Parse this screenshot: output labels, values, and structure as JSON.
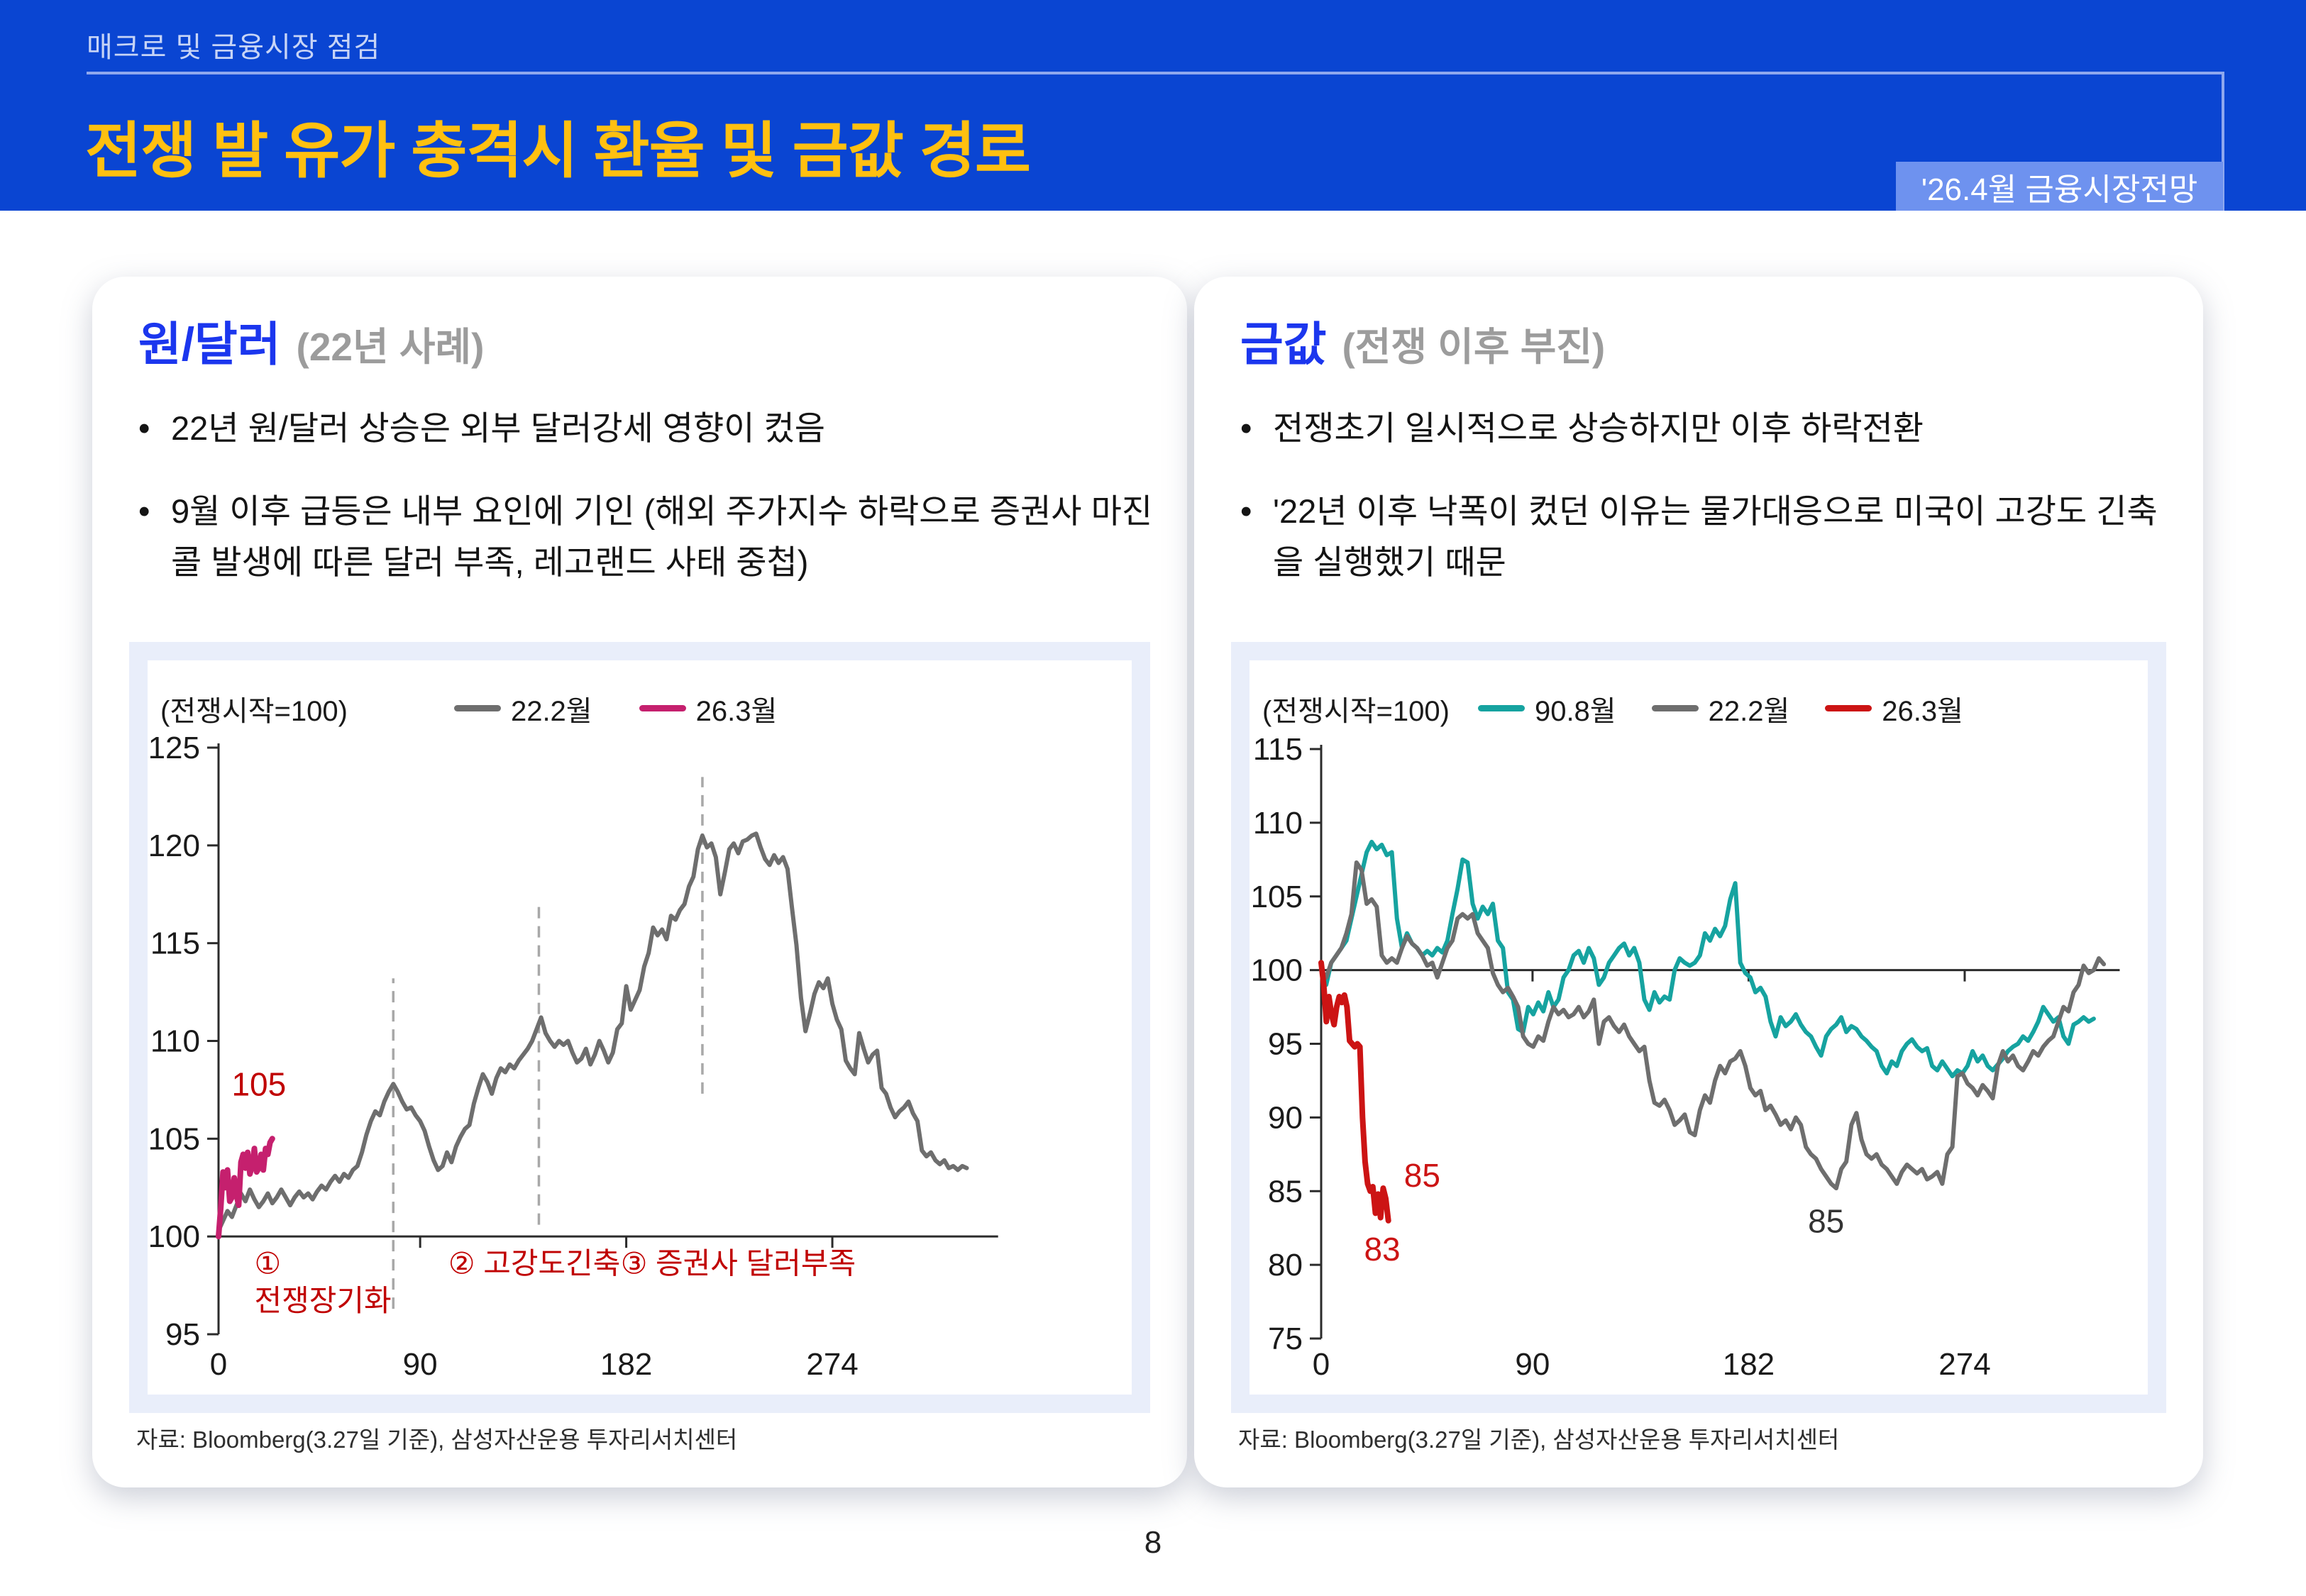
{
  "slide": {
    "eyebrow": "매크로 및 금융시장 점검",
    "title": "전쟁 발 유가 충격시 환율 및 금값 경로",
    "badge": "'26.4월 금융시장전망",
    "page_number": "8"
  },
  "colors": {
    "header_bg": "#0a45d2",
    "header_accent_line": "#8fa8ee",
    "title_yellow": "#ffc010",
    "badge_bg": "#6e92ef",
    "panel_title_blue": "#1b36ee",
    "subtitle_gray": "#9c9c9c",
    "chart_frame_bg": "#e9eefa",
    "annotation_red": "#c00000",
    "series_gray": "#6e6e6e",
    "series_pink": "#c5206e",
    "series_teal": "#16a3a0",
    "series_red": "#cc1414"
  },
  "panels": [
    {
      "title": "원/달러",
      "subtitle": "(22년 사례)",
      "bullets": [
        "22년 원/달러 상승은 외부 달러강세 영향이 컸음",
        "9월 이후 급등은 내부 요인에 기인 (해외 주가지수 하락으로 증권사 마진콜 발생에 따른 달러 부족, 레고랜드 사태 중첩)"
      ],
      "source": "자료: Bloomberg(3.27일 기준), 삼성자산운용 투자리서치센터"
    },
    {
      "title": "금값",
      "subtitle": "(전쟁 이후 부진)",
      "bullets": [
        "전쟁초기 일시적으로 상승하지만 이후 하락전환",
        "'22년 이후 낙폭이 컸던 이유는 물가대응으로 미국이 고강도 긴축을 실행했기 때문"
      ],
      "source": "자료: Bloomberg(3.27일 기준), 삼성자산운용 투자리서치센터"
    }
  ],
  "chart_data": [
    {
      "type": "line",
      "title": "원/달러 (22년 사례)",
      "unit_label": "(전쟁시작=100)",
      "xlabel": "",
      "ylabel": "",
      "xlim": [
        0,
        350
      ],
      "ylim": [
        95,
        125
      ],
      "xticks": [
        0,
        90,
        182,
        274
      ],
      "yticks": [
        95,
        100,
        105,
        110,
        115,
        120,
        125
      ],
      "baseline": 100,
      "baseline_to": 348,
      "grid": false,
      "legend_position": "top",
      "series": [
        {
          "name": "22.2월",
          "color": "#6e6e6e",
          "width": 6,
          "start": 0,
          "step": 2,
          "values": [
            100.3,
            100.8,
            101.3,
            101.0,
            101.6,
            102.2,
            101.8,
            102.4,
            101.9,
            101.5,
            101.8,
            102.2,
            101.7,
            102.0,
            102.4,
            102.0,
            101.6,
            102.0,
            102.3,
            102.0,
            102.2,
            101.9,
            102.3,
            102.6,
            102.4,
            102.8,
            103.1,
            102.8,
            103.2,
            103.0,
            103.4,
            103.6,
            104.3,
            105.2,
            105.9,
            106.4,
            106.2,
            106.9,
            107.4,
            107.8,
            107.4,
            106.9,
            106.5,
            106.6,
            106.2,
            105.9,
            105.4,
            104.6,
            103.9,
            103.4,
            103.6,
            104.3,
            103.8,
            104.6,
            105.1,
            105.5,
            105.7,
            106.8,
            107.6,
            108.3,
            107.9,
            107.3,
            108.1,
            108.6,
            108.4,
            108.8,
            108.6,
            109.0,
            109.3,
            109.6,
            110.0,
            110.6,
            111.2,
            110.4,
            110.0,
            109.7,
            110.0,
            109.8,
            110.0,
            109.4,
            108.9,
            109.1,
            109.6,
            108.8,
            109.3,
            110.0,
            109.5,
            108.9,
            109.4,
            110.6,
            110.9,
            112.8,
            111.6,
            112.1,
            112.6,
            113.8,
            114.5,
            115.8,
            115.4,
            115.7,
            115.2,
            116.4,
            116.2,
            116.7,
            117.0,
            117.9,
            118.4,
            119.8,
            120.5,
            119.9,
            120.1,
            119.4,
            117.5,
            118.6,
            119.8,
            120.1,
            119.6,
            120.2,
            120.3,
            120.5,
            120.6,
            119.9,
            119.3,
            119.0,
            119.5,
            119.1,
            119.4,
            118.8,
            116.8,
            114.9,
            112.2,
            110.5,
            111.4,
            112.4,
            113.0,
            112.7,
            113.2,
            111.9,
            111.1,
            110.6,
            109.0,
            108.6,
            108.3,
            110.4,
            109.6,
            108.9,
            109.3,
            109.5,
            107.6,
            107.3,
            106.6,
            106.1,
            106.4,
            106.6,
            106.9,
            106.3,
            105.9,
            104.4,
            104.1,
            104.3,
            103.9,
            103.7,
            103.9,
            103.5,
            103.6,
            103.4,
            103.6,
            103.5
          ]
        },
        {
          "name": "26.3월",
          "color": "#c5206e",
          "width": 8,
          "start": 0,
          "step": 1,
          "values": [
            100.0,
            101.5,
            103.3,
            102.5,
            103.4,
            101.8,
            102.0,
            103.0,
            102.1,
            101.6,
            103.8,
            104.2,
            103.5,
            104.3,
            103.2,
            103.6,
            104.5,
            103.3,
            103.5,
            104.2,
            103.4,
            104.5,
            104.2,
            104.8,
            105.0
          ]
        }
      ],
      "vlines": [
        {
          "x": 78,
          "y1": 96.3,
          "y2": 113.2
        },
        {
          "x": 143,
          "y1": 100.6,
          "y2": 117.2
        },
        {
          "x": 216,
          "y1": 107.3,
          "y2": 123.5
        }
      ],
      "annotations": [
        {
          "text": "105",
          "x": 18,
          "y": 107.2,
          "color": "#c00000",
          "size": 46,
          "anchor": "middle"
        },
        {
          "text": "①",
          "x": 16,
          "y": 98.1,
          "color": "#c00000",
          "size": 42,
          "anchor": "start"
        },
        {
          "text": "전쟁장기화",
          "x": 16,
          "y": 96.2,
          "color": "#c00000",
          "size": 42,
          "anchor": "start"
        },
        {
          "text": "② 고강도긴축",
          "x": 141,
          "y": 98.1,
          "color": "#c00000",
          "size": 42,
          "anchor": "middle"
        },
        {
          "text": "③ 증권사 달러부족",
          "x": 232,
          "y": 98.1,
          "color": "#c00000",
          "size": 42,
          "anchor": "middle"
        }
      ]
    },
    {
      "type": "line",
      "title": "금값 (전쟁 이후 부진)",
      "unit_label": "(전쟁시작=100)",
      "xlabel": "",
      "ylabel": "",
      "xlim": [
        0,
        345
      ],
      "ylim": [
        75,
        115
      ],
      "xticks": [
        0,
        90,
        182,
        274
      ],
      "yticks": [
        75,
        80,
        85,
        90,
        95,
        100,
        105,
        110,
        115
      ],
      "baseline": 100,
      "baseline_to": 340,
      "grid": false,
      "legend_position": "top",
      "series": [
        {
          "name": "90.8월",
          "color": "#16a3a0",
          "width": 6,
          "start": 0,
          "step": 2.15,
          "values": [
            100.0,
            99.0,
            100.5,
            101.0,
            101.5,
            102.0,
            103.5,
            105.0,
            106.5,
            108.0,
            108.7,
            108.2,
            108.5,
            107.8,
            108.0,
            103.5,
            101.5,
            102.5,
            101.8,
            101.5,
            101.0,
            101.3,
            101.0,
            101.5,
            101.2,
            102.0,
            103.8,
            105.5,
            107.5,
            107.3,
            104.5,
            103.5,
            104.3,
            103.8,
            104.5,
            102.0,
            101.5,
            98.5,
            98.0,
            96.0,
            95.8,
            97.5,
            97.0,
            97.8,
            97.2,
            98.5,
            97.5,
            98.0,
            99.5,
            100.0,
            101.0,
            101.3,
            100.5,
            101.5,
            100.8,
            99.0,
            99.5,
            100.5,
            101.0,
            101.5,
            101.8,
            101.0,
            101.5,
            100.5,
            98.0,
            97.3,
            98.5,
            97.8,
            98.2,
            98.0,
            100.0,
            100.8,
            100.5,
            100.3,
            100.5,
            101.0,
            102.5,
            102.0,
            102.8,
            102.3,
            103.0,
            104.8,
            105.9,
            100.5,
            99.8,
            99.5,
            98.5,
            98.8,
            98.2,
            96.5,
            95.5,
            96.8,
            96.2,
            96.5,
            97.0,
            96.3,
            95.8,
            95.5,
            94.8,
            94.2,
            95.5,
            96.0,
            96.3,
            96.8,
            95.8,
            96.2,
            96.0,
            95.5,
            95.2,
            94.8,
            94.5,
            93.5,
            93.0,
            93.8,
            93.5,
            94.5,
            95.0,
            95.3,
            94.8,
            94.5,
            94.7,
            93.5,
            93.2,
            93.8,
            93.3,
            92.8,
            93.2,
            93.0,
            93.5,
            94.5,
            93.8,
            94.2,
            93.5,
            93.2,
            93.6,
            94.0,
            94.5,
            94.8,
            95.0,
            95.5,
            95.2,
            95.8,
            96.5,
            97.5,
            97.0,
            96.5,
            96.8,
            95.5,
            95.0,
            96.3,
            96.5,
            96.8,
            96.5,
            96.7
          ]
        },
        {
          "name": "22.2월",
          "color": "#6e6e6e",
          "width": 6,
          "start": 0,
          "step": 2.15,
          "values": [
            100.0,
            99.5,
            100.5,
            101.0,
            101.5,
            102.5,
            103.8,
            107.3,
            106.8,
            104.5,
            104.8,
            104.3,
            101.0,
            100.5,
            100.8,
            100.5,
            101.5,
            102.3,
            101.8,
            101.5,
            101.0,
            100.3,
            100.5,
            99.5,
            100.5,
            101.5,
            102.0,
            103.5,
            103.8,
            103.5,
            103.8,
            102.5,
            102.0,
            101.5,
            99.8,
            99.0,
            98.5,
            98.8,
            98.2,
            97.5,
            95.5,
            95.0,
            94.8,
            95.5,
            95.2,
            96.5,
            97.5,
            97.0,
            97.3,
            96.8,
            97.0,
            97.5,
            96.8,
            97.2,
            98.0,
            95.0,
            96.5,
            96.8,
            96.2,
            95.8,
            96.3,
            95.5,
            95.0,
            94.5,
            94.8,
            92.5,
            91.0,
            90.8,
            91.2,
            90.5,
            89.5,
            89.8,
            90.2,
            89.0,
            88.8,
            90.5,
            91.5,
            91.0,
            92.5,
            93.5,
            93.0,
            93.8,
            94.0,
            94.5,
            93.5,
            92.0,
            91.5,
            91.8,
            90.5,
            90.8,
            90.2,
            89.5,
            89.8,
            89.2,
            90.0,
            89.5,
            88.0,
            87.5,
            87.2,
            86.5,
            86.0,
            85.5,
            85.2,
            86.5,
            87.0,
            89.5,
            90.3,
            88.5,
            87.5,
            87.2,
            87.5,
            86.8,
            86.5,
            86.0,
            85.5,
            86.3,
            86.8,
            86.5,
            86.2,
            86.5,
            85.8,
            86.0,
            86.3,
            85.5,
            87.5,
            88.0,
            92.8,
            93.0,
            92.3,
            92.0,
            91.5,
            92.2,
            91.8,
            91.3,
            93.5,
            94.5,
            93.8,
            94.2,
            93.5,
            93.2,
            93.8,
            94.5,
            94.2,
            94.8,
            95.2,
            95.5,
            96.5,
            97.5,
            97.2,
            98.5,
            99.0,
            100.3,
            99.8,
            100.0,
            100.8,
            100.4
          ]
        },
        {
          "name": "26.3월",
          "color": "#cc1414",
          "width": 8,
          "start": 0,
          "step": 1.1,
          "values": [
            100.5,
            99.0,
            96.5,
            98.2,
            97.0,
            96.3,
            97.5,
            98.2,
            97.8,
            98.3,
            97.5,
            95.2,
            95.0,
            94.8,
            95.0,
            94.8,
            90.0,
            87.0,
            85.5,
            85.0,
            85.3,
            83.5,
            84.8,
            83.2,
            85.2,
            84.5,
            83.0
          ]
        }
      ],
      "vlines": [],
      "annotations": [
        {
          "text": "85",
          "x": 43,
          "y": 85.3,
          "color": "#cc1414",
          "size": 46,
          "anchor": "middle"
        },
        {
          "text": "83",
          "x": 26,
          "y": 80.3,
          "color": "#cc1414",
          "size": 46,
          "anchor": "middle"
        },
        {
          "text": "85",
          "x": 215,
          "y": 82.2,
          "color": "#333333",
          "size": 46,
          "anchor": "middle"
        }
      ]
    }
  ]
}
